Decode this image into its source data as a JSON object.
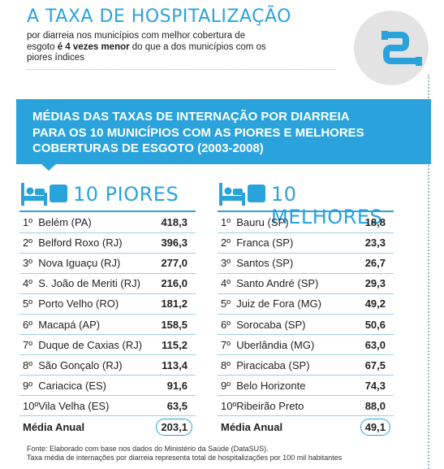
{
  "header": {
    "headline": "A TAXA DE HOSPITALIZAÇÃO",
    "subtitle_pre": "por diarreia nos municípios com melhor cobertura de esgoto ",
    "subtitle_bold": "é 4 vezes menor",
    "subtitle_post": " do que a dos municípios com os piores índices"
  },
  "banner": {
    "line1": "MÉDIAS DAS TAXAS DE INTERNAÇÃO POR DIARREIA",
    "line2": "PARA OS 10 MUNICÍPIOS COM AS PIORES E MELHORES",
    "line3": "COBERTURAS DE ESGOTO (2003-2008)"
  },
  "worst": {
    "title": "10 PIORES",
    "rows": [
      {
        "rank": "1º",
        "name": "Belém (PA)",
        "value": "418,3"
      },
      {
        "rank": "2º",
        "name": "Belford Roxo (RJ)",
        "value": "396,3"
      },
      {
        "rank": "3º",
        "name": "Nova Iguaçu (RJ)",
        "value": "277,0"
      },
      {
        "rank": "4º",
        "name": "S. João de Meriti (RJ)",
        "value": "216,0"
      },
      {
        "rank": "5º",
        "name": "Porto Velho (RO)",
        "value": "181,2"
      },
      {
        "rank": "6º",
        "name": "Macapá (AP)",
        "value": "158,5"
      },
      {
        "rank": "7º",
        "name": "Duque de Caxias (RJ)",
        "value": "115,2"
      },
      {
        "rank": "8º",
        "name": "São Gonçalo (RJ)",
        "value": "113,4"
      },
      {
        "rank": "9º",
        "name": "Cariacica (ES)",
        "value": "91,6"
      },
      {
        "rank": "10º",
        "name": "Vila Velha (ES)",
        "value": "63,5"
      }
    ],
    "avg_label": "Média Anual",
    "avg_value": "203,1"
  },
  "best": {
    "title": "10 MELHORES",
    "rows": [
      {
        "rank": "1º",
        "name": "Bauru (SP)",
        "value": "18,8"
      },
      {
        "rank": "2º",
        "name": "Franca (SP)",
        "value": "23,3"
      },
      {
        "rank": "3º",
        "name": "Santos (SP)",
        "value": "26,7"
      },
      {
        "rank": "4º",
        "name": "Santo André (SP)",
        "value": "29,3"
      },
      {
        "rank": "5º",
        "name": "Juiz de Fora (MG)",
        "value": "49,2"
      },
      {
        "rank": "6º",
        "name": "Sorocaba (SP)",
        "value": "50,6"
      },
      {
        "rank": "7º",
        "name": "Uberlândia (MG)",
        "value": "63,0"
      },
      {
        "rank": "8º",
        "name": "Piracicaba (SP)",
        "value": "67,5"
      },
      {
        "rank": "9º",
        "name": "Belo Horizonte",
        "value": "74,3"
      },
      {
        "rank": "10º",
        "name": "Ribeirão Preto",
        "value": "88,0"
      }
    ],
    "avg_label": "Média Anual",
    "avg_value": "49,1"
  },
  "footnote": {
    "line1": "Fonte: Elaborado com base nos dados do Ministério da Saúde (DataSUS).",
    "line2": "Taxa média de internações por diarreia representa total de hospitalizações por 100 mil habitantes"
  },
  "colors": {
    "accent": "#2aa3dc",
    "pipe": "#2aa3dc",
    "circle": "#e3e3e3"
  },
  "icons": {
    "logo": "pipe-icon",
    "row_header": "hospital-bed-icon"
  }
}
